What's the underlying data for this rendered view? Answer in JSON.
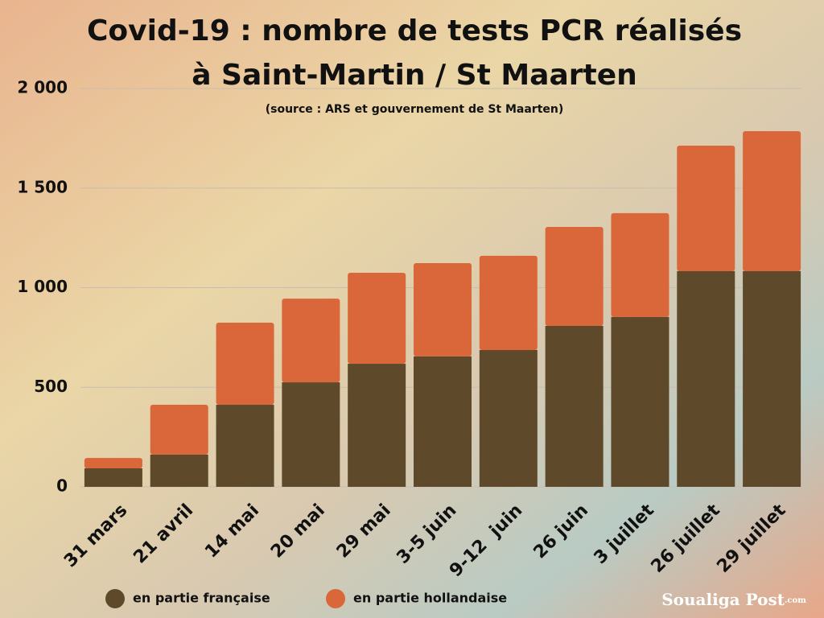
{
  "chart_data": {
    "type": "stacked_bar",
    "title": [
      "Covid-19 : nombre de tests PCR réalisés",
      "à Saint-Martin / St Maarten"
    ],
    "subtitle": "(source : ARS et gouvernement de St Maarten)",
    "logo": [
      "Soualiga Post",
      ".com"
    ],
    "categories": [
      "31 mars",
      "21 avril",
      "14 mai",
      "20 mai",
      "29 mai",
      "3-5 juin",
      "9-12  juin",
      "26 juin",
      "3 juillet",
      "26 juillet",
      "29 juillet"
    ],
    "series": [
      {
        "name": "en partie française",
        "color": "#5e4a2a",
        "values": [
          93,
          162,
          412,
          525,
          618,
          655,
          687,
          808,
          853,
          1083,
          1083
        ]
      },
      {
        "name": "en partie hollandaise",
        "color": "#d9673a",
        "values": [
          52,
          250,
          412,
          420,
          457,
          468,
          473,
          497,
          521,
          630,
          703
        ]
      }
    ],
    "ylim": [
      0,
      2000
    ],
    "yticks": [
      0,
      500,
      {
        "value": 1000,
        "label": "1 000"
      },
      {
        "value": 1500,
        "label": "1 500"
      },
      {
        "value": 2000,
        "label": "2 000"
      }
    ],
    "grid": true
  }
}
